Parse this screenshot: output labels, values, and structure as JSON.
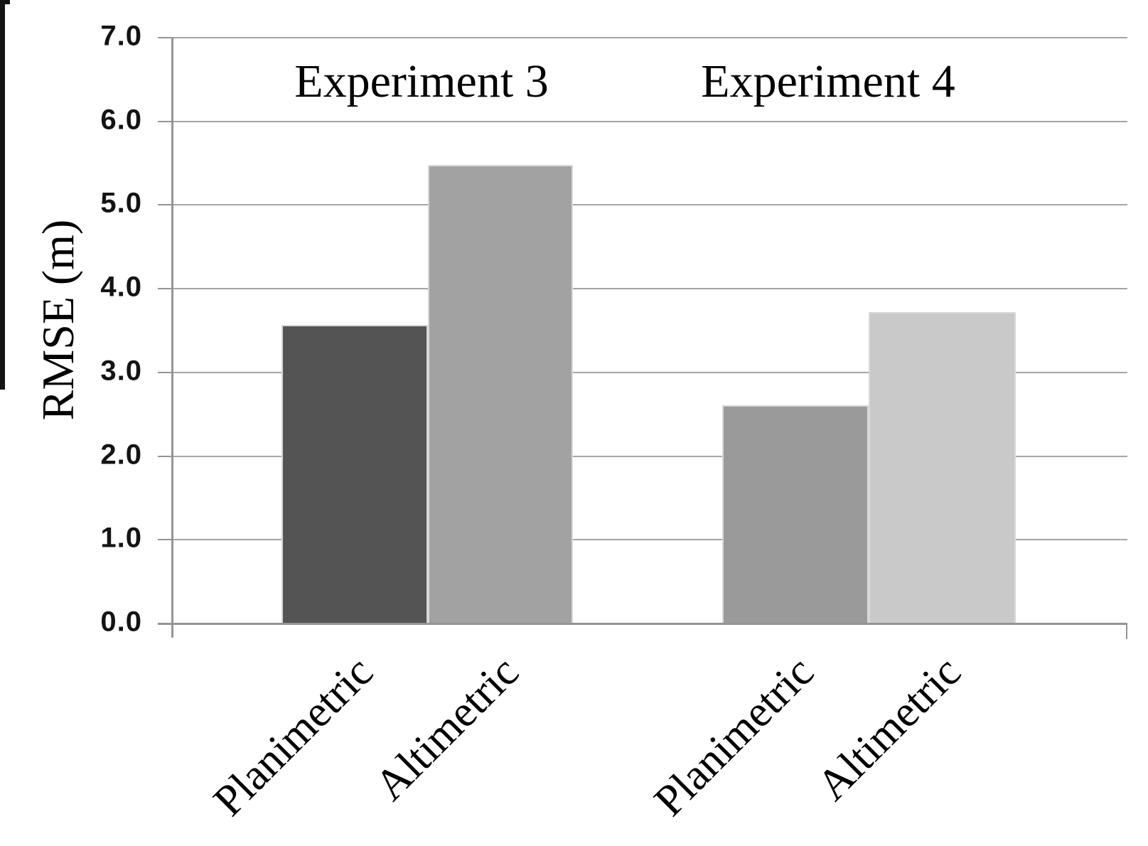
{
  "chart_data": {
    "type": "bar",
    "title": "",
    "xlabel": "",
    "ylabel": "RMSE (m)",
    "ylim": [
      0.0,
      7.0
    ],
    "ytick_step": 1.0,
    "ytick_labels": [
      "0.0",
      "1.0",
      "2.0",
      "3.0",
      "4.0",
      "5.0",
      "6.0",
      "7.0"
    ],
    "grid": true,
    "legend": false,
    "groups": [
      {
        "label": "Experiment 3",
        "bars": [
          {
            "category": "Planimetric",
            "value": 3.57,
            "color": "#545454"
          },
          {
            "category": "Altimetric",
            "value": 5.48,
            "color": "#a2a2a2"
          }
        ]
      },
      {
        "label": "Experiment 4",
        "bars": [
          {
            "category": "Planimetric",
            "value": 2.61,
            "color": "#9a9a9a"
          },
          {
            "category": "Altimetric",
            "value": 3.72,
            "color": "#c9c9c9"
          }
        ]
      }
    ],
    "axis_color": "#949494",
    "gridline_color": "#a5a5a5"
  }
}
